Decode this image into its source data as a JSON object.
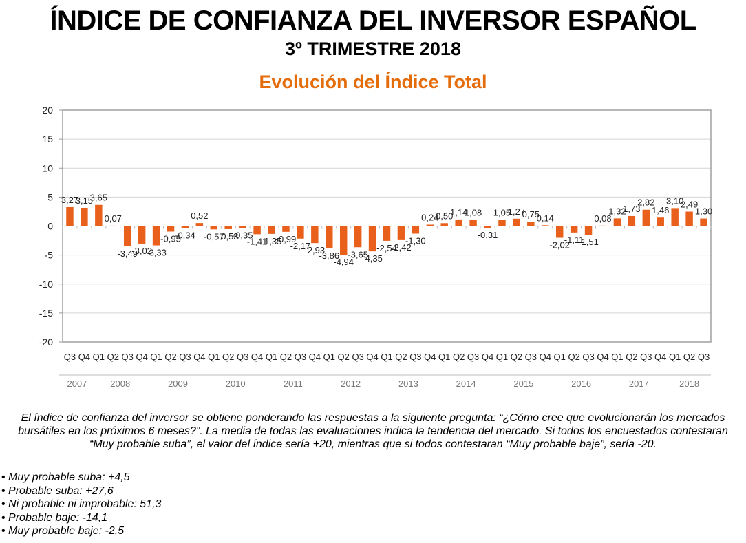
{
  "header": {
    "title": "ÍNDICE DE CONFIANZA DEL INVERSOR ESPAÑOL",
    "subtitle": "3º TRIMESTRE 2018"
  },
  "chart_data": {
    "type": "bar",
    "title": "Evolución del Índice Total",
    "xlabel": "",
    "ylabel": "",
    "ylim": [
      -20,
      20
    ],
    "yticks": [
      20,
      15,
      10,
      5,
      0,
      -5,
      -10,
      -15,
      -20
    ],
    "grid": true,
    "categories": [
      "Q3",
      "Q4",
      "Q1",
      "Q2",
      "Q3",
      "Q4",
      "Q1",
      "Q2",
      "Q3",
      "Q4",
      "Q1",
      "Q2",
      "Q3",
      "Q4",
      "Q1",
      "Q2",
      "Q3",
      "Q4",
      "Q1",
      "Q2",
      "Q3",
      "Q4",
      "Q1",
      "Q2",
      "Q3",
      "Q4",
      "Q1",
      "Q2",
      "Q3",
      "Q4",
      "Q1",
      "Q2",
      "Q3",
      "Q4",
      "Q1",
      "Q2",
      "Q3",
      "Q4",
      "Q1",
      "Q2",
      "Q3",
      "Q4",
      "Q1",
      "Q2",
      "Q3"
    ],
    "years": [
      {
        "label": "2007",
        "quarters": 2
      },
      {
        "label": "2008",
        "quarters": 4
      },
      {
        "label": "2009",
        "quarters": 4
      },
      {
        "label": "2010",
        "quarters": 4
      },
      {
        "label": "2011",
        "quarters": 4
      },
      {
        "label": "2012",
        "quarters": 4
      },
      {
        "label": "2013",
        "quarters": 4
      },
      {
        "label": "2014",
        "quarters": 4
      },
      {
        "label": "2015",
        "quarters": 4
      },
      {
        "label": "2016",
        "quarters": 4
      },
      {
        "label": "2017",
        "quarters": 4
      },
      {
        "label": "2018",
        "quarters": 3
      }
    ],
    "values": [
      3.27,
      3.15,
      3.65,
      0.07,
      -3.49,
      -3.02,
      -3.33,
      -0.95,
      -0.34,
      0.52,
      -0.57,
      -0.53,
      -0.35,
      -1.41,
      -1.35,
      -0.99,
      -2.17,
      -2.93,
      -3.86,
      -4.94,
      -3.65,
      -4.35,
      -2.54,
      -2.42,
      -1.3,
      0.24,
      0.5,
      1.14,
      1.08,
      -0.31,
      1.05,
      1.27,
      0.75,
      0.14,
      -2.02,
      -1.11,
      -1.51,
      0.08,
      1.32,
      1.73,
      2.82,
      1.46,
      3.1,
      2.49,
      1.3
    ],
    "labels": [
      "3,27",
      "3,15",
      "3,65",
      "0,07",
      "-3,49",
      "-3,02",
      "-3,33",
      "-0,95",
      "-0,34",
      "0,52",
      "-0,57",
      "-0,53",
      "-0,35",
      "-1,41",
      "-1,35",
      "-0,99",
      "-2,17",
      "-2,93",
      "-3,86",
      "-4,94",
      "-3,65",
      "-4,35",
      "-2,54",
      "-2,42",
      "-1,30",
      "0,24",
      "0,50",
      "1,14",
      "1,08",
      "-0,31",
      "1,05",
      "1,27",
      "0,75",
      "0,14",
      "-2,02",
      "-1,11",
      "-1,51",
      "0,08",
      "1,32",
      "1,73",
      "2,82",
      "1,46",
      "3,10",
      "2,49",
      "1,30"
    ],
    "bar_color": "#E8601C",
    "title_color": "#E46C0A"
  },
  "footer": {
    "description": "El índice de confianza del inversor se obtiene ponderando las respuestas a la siguiente pregunta: “¿Cómo cree que evolucionarán los mercados bursátiles en los próximos 6 meses?”. La media de todas las evaluaciones indica la tendencia del mercado. Si todos los encuestados contestaran “Muy probable suba”, el valor del índice sería +20, mientras que si todos contestaran “Muy probable baje”, sería -20.",
    "bullets": [
      "Muy probable suba: +4,5",
      "Probable suba: +27,6",
      "Ni probable ni improbable: 51,3",
      "Probable baje: -14,1",
      "Muy probable baje: -2,5"
    ]
  }
}
